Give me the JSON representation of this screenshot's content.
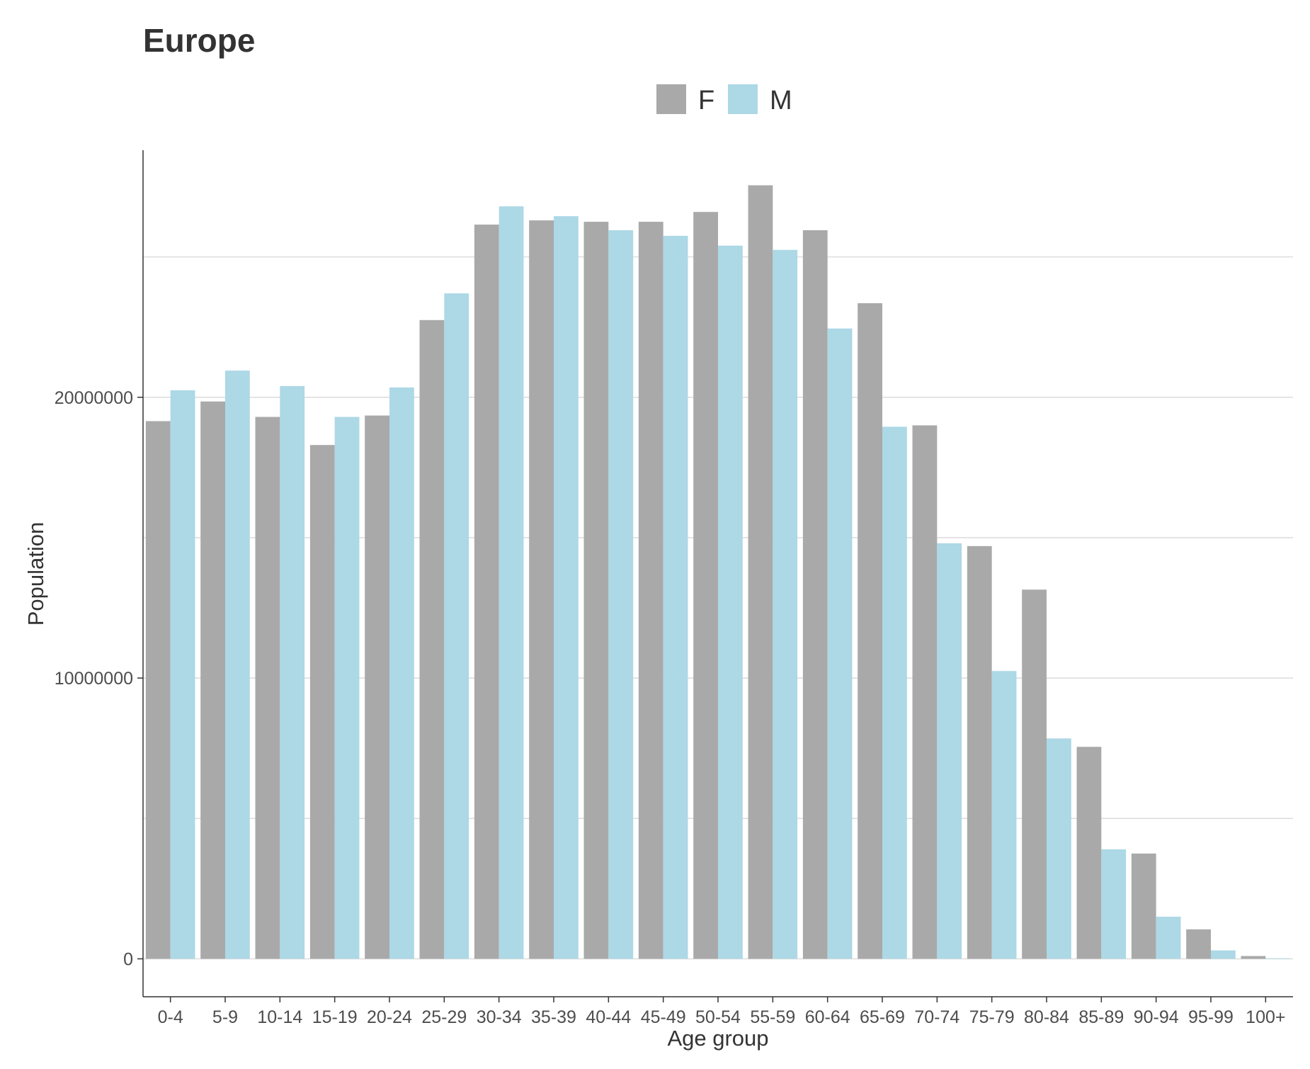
{
  "chart_data": {
    "type": "bar",
    "title": "Europe",
    "xlabel": "Age group",
    "ylabel": "Population",
    "ylim": [
      -1350000,
      28800000
    ],
    "yticks": [
      0,
      10000000,
      20000000
    ],
    "ytick_labels": [
      "0",
      "10000000",
      "20000000"
    ],
    "grid": "horizontal",
    "legend": "top-center",
    "categories": [
      "0-4",
      "5-9",
      "10-14",
      "15-19",
      "20-24",
      "25-29",
      "30-34",
      "35-39",
      "40-44",
      "45-49",
      "50-54",
      "55-59",
      "60-64",
      "65-69",
      "70-74",
      "75-79",
      "80-84",
      "85-89",
      "90-94",
      "95-99",
      "100+"
    ],
    "series": [
      {
        "name": "F",
        "color": "#a9a9a9",
        "values": [
          19150000,
          19850000,
          19300000,
          18300000,
          19350000,
          22750000,
          26150000,
          26300000,
          26250000,
          26250000,
          26600000,
          27550000,
          25950000,
          23350000,
          19000000,
          14700000,
          13150000,
          7550000,
          3750000,
          1050000,
          100000
        ]
      },
      {
        "name": "M",
        "color": "#add8e6",
        "values": [
          20250000,
          20950000,
          20400000,
          19300000,
          20350000,
          23700000,
          26800000,
          26450000,
          25950000,
          25750000,
          25400000,
          25250000,
          22450000,
          18950000,
          14800000,
          10250000,
          7850000,
          3900000,
          1500000,
          300000,
          20000
        ]
      }
    ]
  }
}
